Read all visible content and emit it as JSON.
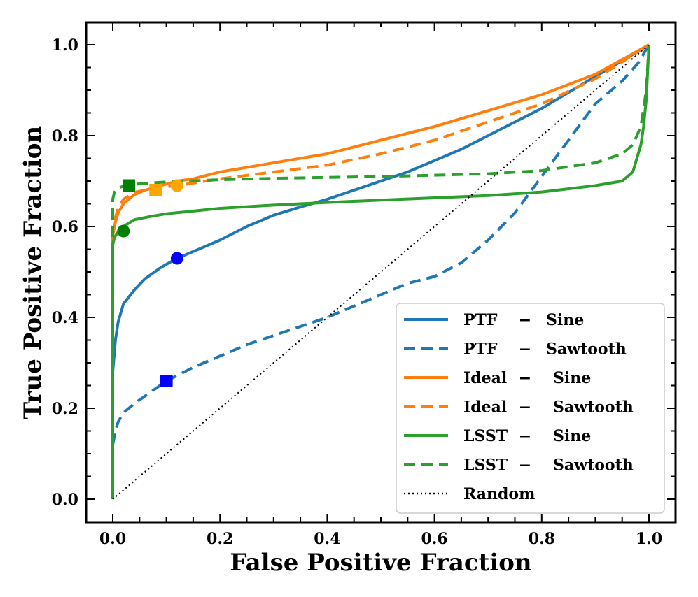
{
  "chart_data": {
    "type": "line",
    "title": "",
    "xlabel": "False Positive Fraction",
    "ylabel": "True Positive Fraction",
    "xlim": [
      -0.05,
      1.05
    ],
    "ylim": [
      -0.05,
      1.05
    ],
    "xticks": [
      {
        "value": 0.0,
        "label": "0.0"
      },
      {
        "value": 0.2,
        "label": "0.2"
      },
      {
        "value": 0.4,
        "label": "0.4"
      },
      {
        "value": 0.6,
        "label": "0.6"
      },
      {
        "value": 0.8,
        "label": "0.8"
      },
      {
        "value": 1.0,
        "label": "1.0"
      }
    ],
    "yticks": [
      {
        "value": 0.0,
        "label": "0.0"
      },
      {
        "value": 0.2,
        "label": "0.2"
      },
      {
        "value": 0.4,
        "label": "0.4"
      },
      {
        "value": 0.6,
        "label": "0.6"
      },
      {
        "value": 0.8,
        "label": "0.8"
      },
      {
        "value": 1.0,
        "label": "1.0"
      }
    ],
    "legend_position": "lower-right",
    "series": [
      {
        "name": "PTF",
        "variant": "Sine",
        "color": "#1f77b4",
        "style": "solid",
        "x": [
          0.0,
          0.0,
          0.005,
          0.01,
          0.02,
          0.04,
          0.06,
          0.09,
          0.12,
          0.15,
          0.2,
          0.25,
          0.3,
          0.35,
          0.4,
          0.45,
          0.5,
          0.55,
          0.6,
          0.65,
          0.7,
          0.75,
          0.8,
          0.85,
          0.9,
          0.95,
          1.0
        ],
        "y": [
          0.0,
          0.28,
          0.35,
          0.39,
          0.43,
          0.46,
          0.485,
          0.51,
          0.53,
          0.545,
          0.57,
          0.6,
          0.625,
          0.643,
          0.66,
          0.68,
          0.7,
          0.72,
          0.745,
          0.77,
          0.8,
          0.83,
          0.86,
          0.895,
          0.93,
          0.965,
          1.0
        ]
      },
      {
        "name": "PTF",
        "variant": "Sawtooth",
        "color": "#1f77b4",
        "style": "dashed",
        "x": [
          0.0,
          0.005,
          0.01,
          0.02,
          0.04,
          0.07,
          0.1,
          0.15,
          0.2,
          0.25,
          0.3,
          0.35,
          0.4,
          0.45,
          0.5,
          0.55,
          0.6,
          0.65,
          0.7,
          0.75,
          0.8,
          0.85,
          0.9,
          0.95,
          0.98,
          1.0
        ],
        "y": [
          0.12,
          0.15,
          0.17,
          0.19,
          0.21,
          0.235,
          0.26,
          0.29,
          0.315,
          0.34,
          0.36,
          0.38,
          0.4,
          0.425,
          0.45,
          0.475,
          0.49,
          0.52,
          0.57,
          0.63,
          0.71,
          0.79,
          0.87,
          0.92,
          0.96,
          1.0
        ]
      },
      {
        "name": "Ideal",
        "variant": "Sine",
        "color": "#ff7f0e",
        "style": "solid",
        "x": [
          0.0,
          0.0,
          0.005,
          0.01,
          0.02,
          0.04,
          0.06,
          0.09,
          0.12,
          0.15,
          0.2,
          0.3,
          0.4,
          0.5,
          0.6,
          0.7,
          0.8,
          0.9,
          1.0
        ],
        "y": [
          0.0,
          0.58,
          0.61,
          0.63,
          0.65,
          0.67,
          0.68,
          0.69,
          0.7,
          0.705,
          0.72,
          0.74,
          0.76,
          0.79,
          0.82,
          0.855,
          0.89,
          0.935,
          1.0
        ]
      },
      {
        "name": "Ideal",
        "variant": "Sawtooth",
        "color": "#ff7f0e",
        "style": "dashed",
        "x": [
          0.0,
          0.0,
          0.005,
          0.01,
          0.02,
          0.04,
          0.08,
          0.12,
          0.2,
          0.3,
          0.4,
          0.5,
          0.6,
          0.7,
          0.8,
          0.9,
          1.0
        ],
        "y": [
          0.0,
          0.6,
          0.62,
          0.64,
          0.66,
          0.675,
          0.685,
          0.69,
          0.705,
          0.72,
          0.735,
          0.76,
          0.79,
          0.83,
          0.87,
          0.925,
          1.0
        ]
      },
      {
        "name": "LSST",
        "variant": "Sine",
        "color": "#2ca02c",
        "style": "solid",
        "x": [
          0.0,
          0.0,
          0.003,
          0.008,
          0.02,
          0.04,
          0.07,
          0.1,
          0.2,
          0.3,
          0.4,
          0.5,
          0.6,
          0.7,
          0.8,
          0.9,
          0.95,
          0.97,
          0.985,
          0.99,
          0.995,
          1.0
        ],
        "y": [
          0.0,
          0.56,
          0.575,
          0.585,
          0.6,
          0.615,
          0.622,
          0.628,
          0.64,
          0.647,
          0.653,
          0.658,
          0.663,
          0.668,
          0.676,
          0.69,
          0.7,
          0.72,
          0.78,
          0.82,
          0.88,
          1.0
        ]
      },
      {
        "name": "LSST",
        "variant": "Sawtooth",
        "color": "#2ca02c",
        "style": "dashed",
        "x": [
          0.0,
          0.0,
          0.003,
          0.01,
          0.03,
          0.06,
          0.1,
          0.2,
          0.3,
          0.4,
          0.5,
          0.6,
          0.7,
          0.8,
          0.9,
          0.95,
          0.97,
          0.985,
          0.995,
          1.0
        ],
        "y": [
          0.0,
          0.66,
          0.675,
          0.685,
          0.692,
          0.695,
          0.698,
          0.703,
          0.706,
          0.708,
          0.71,
          0.713,
          0.716,
          0.723,
          0.74,
          0.76,
          0.78,
          0.82,
          0.9,
          1.0
        ]
      },
      {
        "name": "Random",
        "variant": "",
        "color": "#000000",
        "style": "dotted",
        "x": [
          0.0,
          1.0
        ],
        "y": [
          0.0,
          1.0
        ]
      }
    ],
    "markers": [
      {
        "shape": "circle",
        "x": 0.12,
        "y": 0.53,
        "color": "#0000ff"
      },
      {
        "shape": "square",
        "x": 0.1,
        "y": 0.26,
        "color": "#0000ff"
      },
      {
        "shape": "circle",
        "x": 0.12,
        "y": 0.69,
        "color": "#ffa500"
      },
      {
        "shape": "square",
        "x": 0.08,
        "y": 0.68,
        "color": "#ffa500"
      },
      {
        "shape": "circle",
        "x": 0.02,
        "y": 0.59,
        "color": "#008000"
      },
      {
        "shape": "square",
        "x": 0.03,
        "y": 0.69,
        "color": "#008000"
      }
    ],
    "legend": [
      {
        "name": "PTF",
        "sep": "−",
        "variant": "Sine",
        "color": "#1f77b4",
        "style": "solid"
      },
      {
        "name": "PTF",
        "sep": "−",
        "variant": "Sawtooth",
        "color": "#1f77b4",
        "style": "dashed"
      },
      {
        "name": "Ideal",
        "sep": "−",
        "variant": "Sine",
        "color": "#ff7f0e",
        "style": "solid"
      },
      {
        "name": "Ideal",
        "sep": "−",
        "variant": "Sawtooth",
        "color": "#ff7f0e",
        "style": "dashed"
      },
      {
        "name": "LSST",
        "sep": "−",
        "variant": "Sine",
        "color": "#2ca02c",
        "style": "solid"
      },
      {
        "name": "LSST",
        "sep": "−",
        "variant": "Sawtooth",
        "color": "#2ca02c",
        "style": "dashed"
      },
      {
        "name": "Random",
        "sep": "",
        "variant": "",
        "color": "#000000",
        "style": "dotted"
      }
    ]
  }
}
